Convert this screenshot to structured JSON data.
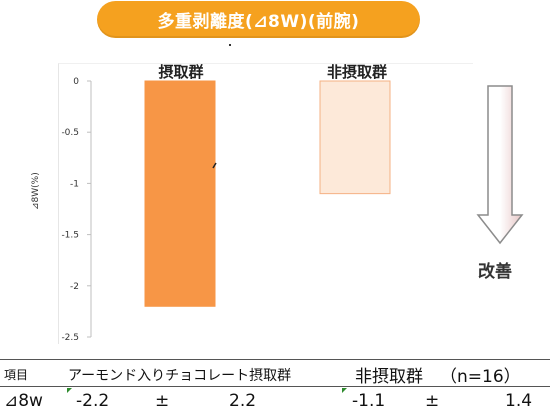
{
  "title": "多重剥離度(⊿8W)(前腕)",
  "chart_data": {
    "type": "bar",
    "categories": [
      "摂取群",
      "非摂取群"
    ],
    "values": [
      -2.2,
      -1.1
    ],
    "ylabel": "⊿8W(%)",
    "ylim": [
      -2.5,
      0
    ],
    "yticks": [
      "0",
      "-0.5",
      "-1",
      "-1.5",
      "-2",
      "-2.5"
    ],
    "ytick_values": [
      0,
      -0.5,
      -1,
      -1.5,
      -2,
      -2.5
    ],
    "colors": [
      "#f79646",
      "#fde9d9"
    ],
    "edge_colors": [
      "#f79646",
      "#f4b183"
    ],
    "grid": false,
    "legend": "none"
  },
  "arrow": {
    "label": "改善",
    "fill": "#ffffff",
    "edge": "#8c8c8c",
    "shade": "#e7c6c6"
  },
  "table": {
    "header": {
      "item": "項目",
      "group1": "アーモンド入りチョコレート摂取群",
      "group2": "非摂取群",
      "n": "（n=16）"
    },
    "row": {
      "label": "⊿8w",
      "g1_mean": "-2.2",
      "g1_pm": "±",
      "g1_sd": "2.2",
      "g2_mean": "-1.1",
      "g2_pm": "±",
      "g2_sd": "1.4"
    }
  }
}
